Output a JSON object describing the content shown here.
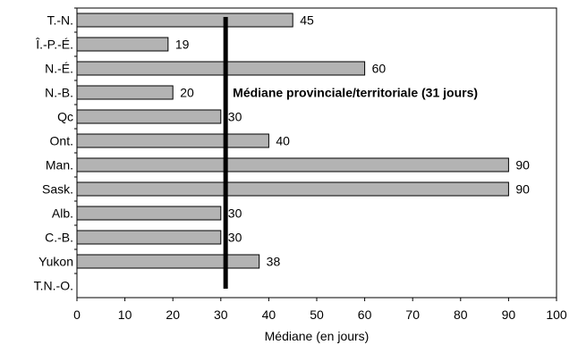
{
  "chart_data": {
    "type": "bar",
    "orientation": "horizontal",
    "categories": [
      "T.-N.",
      "Î.-P.-É.",
      "N.-É.",
      "N.-B.",
      "Qc",
      "Ont.",
      "Man.",
      "Sask.",
      "Alb.",
      "C.-B.",
      "Yukon",
      "T.N.-O."
    ],
    "values": [
      45,
      19,
      60,
      20,
      30,
      40,
      90,
      90,
      30,
      30,
      38,
      null
    ],
    "data_labels": [
      "45",
      "19",
      "60",
      "20",
      "30",
      "40",
      "90",
      "90",
      "30",
      "30",
      "38",
      ""
    ],
    "xlabel": "Médiane (en jours)",
    "ylabel": "",
    "xlim": [
      0,
      100
    ],
    "xticks": [
      "0",
      "10",
      "20",
      "30",
      "40",
      "50",
      "60",
      "70",
      "80",
      "90",
      "100"
    ],
    "grid": false,
    "reference_line": {
      "value": 31,
      "label": "Médiane provinciale/territoriale (31 jours)"
    },
    "colors": {
      "bar_fill": "#b3b3b3",
      "bar_stroke": "#000000",
      "median_line": "#000000"
    }
  }
}
